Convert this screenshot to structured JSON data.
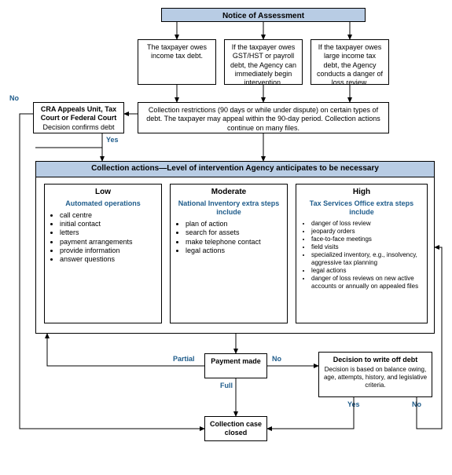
{
  "fontsize": {
    "header": 10,
    "body": 9,
    "label": 9,
    "tiny": 8
  },
  "colors": {
    "header_bg": "#b8cce4",
    "accent": "#1f5c8b",
    "border": "#000000",
    "bg": "#ffffff"
  },
  "noa_header": "Notice of Assessment",
  "noa": {
    "left": "The taxpayer owes income tax debt.",
    "mid": "If the taxpayer owes GST/HST or payroll debt, the Agency can immediately begin intervention.",
    "right": "If the taxpayer owes large income tax debt, the Agency conducts a danger of loss review."
  },
  "restrictions": "Collection restrictions (90 days or while under dispute) on certain types of debt. The taxpayer may appeal within the 90-day period. Collection actions continue on many files.",
  "appeals": {
    "title": "CRA Appeals Unit, Tax Court or Federal Court",
    "sub": "Decision confirms debt"
  },
  "appeal_labels": {
    "yes": "Yes",
    "no": "No"
  },
  "actions_header": "Collection actions—Level of intervention Agency anticipates to be necessary",
  "cols": {
    "low": {
      "title": "Low",
      "sub": "Automated operations",
      "items": [
        "call centre",
        "initial contact",
        "letters",
        "payment arrangements",
        "provide information",
        "answer questions"
      ]
    },
    "mod": {
      "title": "Moderate",
      "sub": "National Inventory extra steps include",
      "items": [
        "plan of action",
        "search for assets",
        "make telephone contact",
        "legal actions"
      ]
    },
    "high": {
      "title": "High",
      "sub": "Tax Services Office extra steps include",
      "items": [
        "danger of loss review",
        "jeopardy orders",
        "face-to-face meetings",
        "field visits",
        "specialized inventory, e.g., insolvency, aggressive tax planning",
        "legal actions",
        "danger of loss reviews on new active accounts or annually on appealed files"
      ]
    }
  },
  "payment": {
    "title": "Payment made",
    "partial": "Partial",
    "no": "No",
    "full": "Full"
  },
  "writeoff": {
    "title": "Decision to write off debt",
    "sub": "Decision is based on balance owing, age, attempts, history, and legislative criteria.",
    "yes": "Yes",
    "no": "No"
  },
  "closed": "Collection case closed"
}
